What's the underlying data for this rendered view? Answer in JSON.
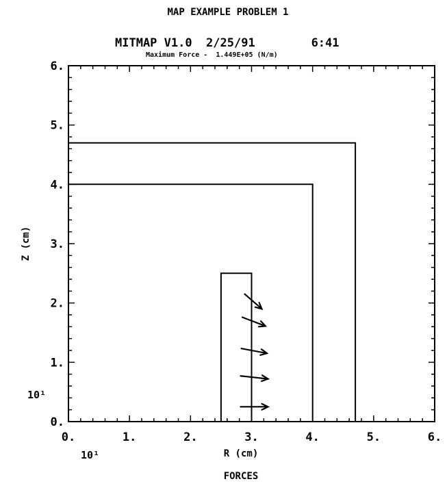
{
  "chart_data": {
    "type": "vector-field",
    "title": "MAP EXAMPLE PROBLEM 1",
    "subtitle": "MITMAP V1.0  2/25/91        6:41",
    "annotation": "Maximum Force -  1.449E+05 (N/m)",
    "xlabel": "R (cm)",
    "ylabel": "Z (cm)",
    "caption": "FORCES",
    "x_scale_label": "10¹",
    "y_scale_label": "10¹",
    "xlim": [
      0,
      6
    ],
    "ylim": [
      0,
      6
    ],
    "x_ticks": [
      "0.",
      "1.",
      "2.",
      "3.",
      "4.",
      "5.",
      "6."
    ],
    "y_ticks": [
      "0.",
      "1.",
      "2.",
      "3.",
      "4.",
      "5.",
      "6."
    ],
    "grid": false,
    "regions": [
      {
        "name": "outer-boundary",
        "points": [
          [
            0,
            4.7
          ],
          [
            4.7,
            4.7
          ],
          [
            4.7,
            0
          ]
        ]
      },
      {
        "name": "inner-boundary",
        "points": [
          [
            0,
            4.0
          ],
          [
            4.0,
            4.0
          ],
          [
            4.0,
            0
          ]
        ]
      },
      {
        "name": "coil-rectangle",
        "points": [
          [
            2.5,
            0
          ],
          [
            2.5,
            2.5
          ],
          [
            3.0,
            2.5
          ],
          [
            3.0,
            0
          ]
        ]
      }
    ],
    "vectors": [
      {
        "x": 3.0,
        "y": 0.25,
        "dx": 0.45,
        "dy": 0.0
      },
      {
        "x": 3.0,
        "y": 0.75,
        "dx": 0.45,
        "dy": -0.05
      },
      {
        "x": 3.0,
        "y": 1.2,
        "dx": 0.42,
        "dy": -0.08
      },
      {
        "x": 3.0,
        "y": 1.7,
        "dx": 0.38,
        "dy": -0.15
      },
      {
        "x": 3.0,
        "y": 2.05,
        "dx": 0.28,
        "dy": -0.25
      }
    ]
  }
}
